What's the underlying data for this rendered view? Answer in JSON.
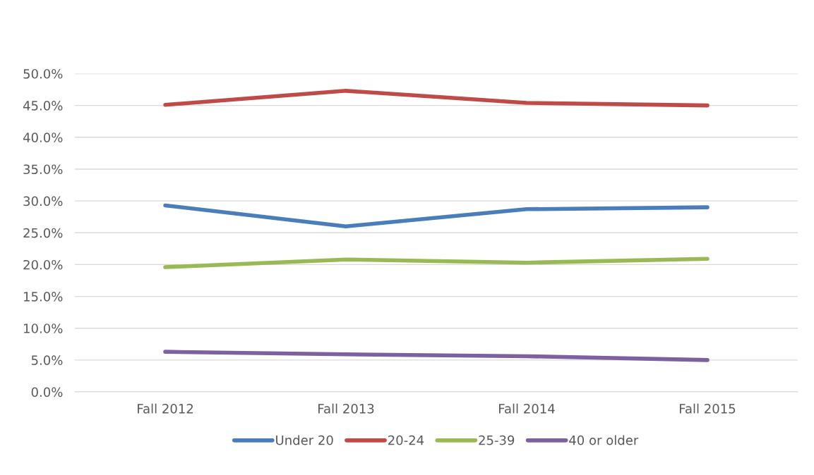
{
  "chart_data": {
    "type": "line",
    "categories": [
      "Fall 2012",
      "Fall 2013",
      "Fall 2014",
      "Fall 2015"
    ],
    "series": [
      {
        "name": "Under 20",
        "color": "#4a7ebb",
        "values": [
          29.3,
          26.0,
          28.7,
          29.0
        ]
      },
      {
        "name": "20-24",
        "color": "#be4b48",
        "values": [
          45.1,
          47.3,
          45.4,
          45.0
        ]
      },
      {
        "name": "25-39",
        "color": "#98b954",
        "values": [
          19.6,
          20.8,
          20.3,
          20.9
        ]
      },
      {
        "name": "40 or older",
        "color": "#7d60a0",
        "values": [
          6.3,
          5.9,
          5.6,
          5.0
        ]
      }
    ],
    "ylim": [
      0,
      50
    ],
    "yticks": [
      {
        "value": 0,
        "label": "0.0%"
      },
      {
        "value": 5,
        "label": "5.0%"
      },
      {
        "value": 10,
        "label": "10.0%"
      },
      {
        "value": 15,
        "label": "15.0%"
      },
      {
        "value": 20,
        "label": "20.0%"
      },
      {
        "value": 25,
        "label": "25.0%"
      },
      {
        "value": 30,
        "label": "30.0%"
      },
      {
        "value": 35,
        "label": "35.0%"
      },
      {
        "value": 40,
        "label": "40.0%"
      },
      {
        "value": 45,
        "label": "45.0%"
      },
      {
        "value": 50,
        "label": "50.0%"
      }
    ],
    "grid": "y",
    "legend": "bottom",
    "marker": "none",
    "line_style": "solid"
  }
}
